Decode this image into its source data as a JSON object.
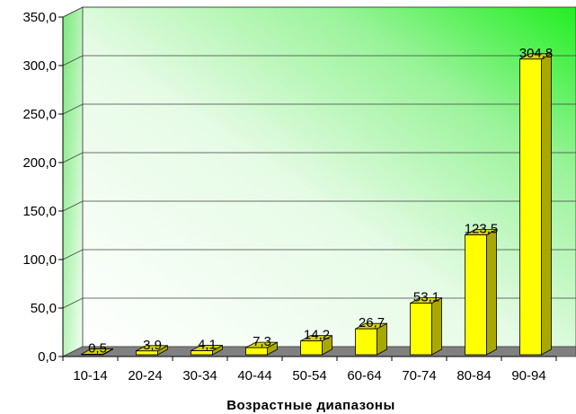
{
  "chart_data": {
    "type": "bar",
    "title": "",
    "xlabel": "Возрастные диапазоны",
    "ylabel": "",
    "categories": [
      "10-14",
      "20-24",
      "30-34",
      "40-44",
      "50-54",
      "60-64",
      "70-74",
      "80-84",
      "90-94"
    ],
    "values": [
      0.5,
      3.9,
      4.1,
      7.3,
      14.2,
      26.7,
      53.1,
      123.5,
      304.8
    ],
    "value_labels": [
      "0,5",
      "3,9",
      "4,1",
      "7,3",
      "14,2",
      "26,7",
      "53,1",
      "123,5",
      "304,8"
    ],
    "ylim": [
      0,
      350
    ],
    "yticks": [
      0,
      50,
      100,
      150,
      200,
      250,
      300,
      350
    ],
    "ytick_labels": [
      "0,0",
      "50,0",
      "100,0",
      "150,0",
      "200,0",
      "250,0",
      "300,0",
      "350,0"
    ],
    "grid": true,
    "legend": "none",
    "colors": {
      "bar_front": "#ffff00",
      "bar_side": "#a8a800",
      "bar_top": "#d4d400",
      "wall_light": "#ffffff",
      "wall_accent": "#22ee22",
      "floor": "#808080",
      "left_wall": "#f0fff0"
    }
  }
}
